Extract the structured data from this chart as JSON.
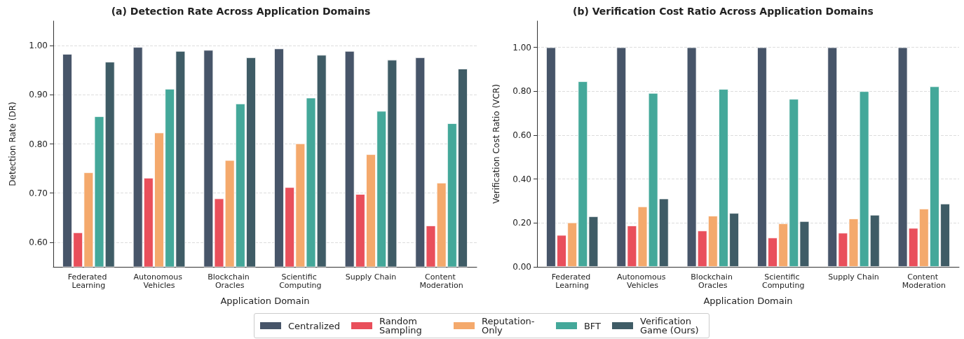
{
  "chart_data": [
    {
      "type": "bar",
      "title": "(a) Detection Rate Across Application Domains",
      "xlabel": "Application Domain",
      "ylabel": "Detection Rate (DR)",
      "categories": [
        "Federated Learning",
        "Autonomous Vehicles",
        "Blockchain Oracles",
        "Scientific Computing",
        "Supply Chain",
        "Content Moderation"
      ],
      "series": [
        {
          "name": "Centralized",
          "color": "#475569",
          "values": [
            0.983,
            0.997,
            0.991,
            0.994,
            0.989,
            0.976
          ]
        },
        {
          "name": "Random Sampling",
          "color": "#e94f5b",
          "values": [
            0.62,
            0.731,
            0.689,
            0.712,
            0.698,
            0.634
          ]
        },
        {
          "name": "Reputation-Only",
          "color": "#f4a96c",
          "values": [
            0.742,
            0.823,
            0.767,
            0.801,
            0.779,
            0.721
          ]
        },
        {
          "name": "BFT",
          "color": "#44a89a",
          "values": [
            0.856,
            0.912,
            0.882,
            0.894,
            0.867,
            0.842
          ]
        },
        {
          "name": "Verification Game (Ours)",
          "color": "#3f5c66",
          "values": [
            0.967,
            0.989,
            0.976,
            0.981,
            0.971,
            0.953
          ]
        }
      ],
      "ylim": [
        0.55,
        1.05
      ],
      "yticks": [
        {
          "value": 0.6,
          "label": "0.60"
        },
        {
          "value": 0.7,
          "label": "0.70"
        },
        {
          "value": 0.8,
          "label": "0.80"
        },
        {
          "value": 0.9,
          "label": "0.90"
        },
        {
          "value": 1.0,
          "label": "1.00"
        }
      ],
      "grid": "y",
      "legend": "bottom"
    },
    {
      "type": "bar",
      "title": "(b) Verification Cost Ratio Across Application Domains",
      "xlabel": "Application Domain",
      "ylabel": "Verification Cost Ratio (VCR)",
      "categories": [
        "Federated Learning",
        "Autonomous Vehicles",
        "Blockchain Oracles",
        "Scientific Computing",
        "Supply Chain",
        "Content Moderation"
      ],
      "series": [
        {
          "color": "#475569",
          "values": [
            1.0,
            1.0,
            1.0,
            1.0,
            1.0,
            1.0
          ]
        },
        {
          "color": "#e94f5b",
          "values": [
            0.145,
            0.188,
            0.165,
            0.133,
            0.155,
            0.177
          ]
        },
        {
          "color": "#f4a96c",
          "values": [
            0.202,
            0.275,
            0.233,
            0.198,
            0.22,
            0.265
          ]
        },
        {
          "color": "#44a89a",
          "values": [
            0.845,
            0.792,
            0.81,
            0.765,
            0.8,
            0.822
          ]
        },
        {
          "color": "#3f5c66",
          "values": [
            0.23,
            0.311,
            0.245,
            0.208,
            0.237,
            0.288
          ]
        }
      ],
      "ylim": [
        0,
        1.12
      ],
      "yticks": [
        {
          "value": 0,
          "label": "0.00"
        },
        {
          "value": 0.2,
          "label": "0.20"
        },
        {
          "value": 0.4,
          "label": "0.40"
        },
        {
          "value": 0.6,
          "label": "0.60"
        },
        {
          "value": 0.8,
          "label": "0.80"
        },
        {
          "value": 1.0,
          "label": "1.00"
        }
      ],
      "grid": "y"
    }
  ]
}
